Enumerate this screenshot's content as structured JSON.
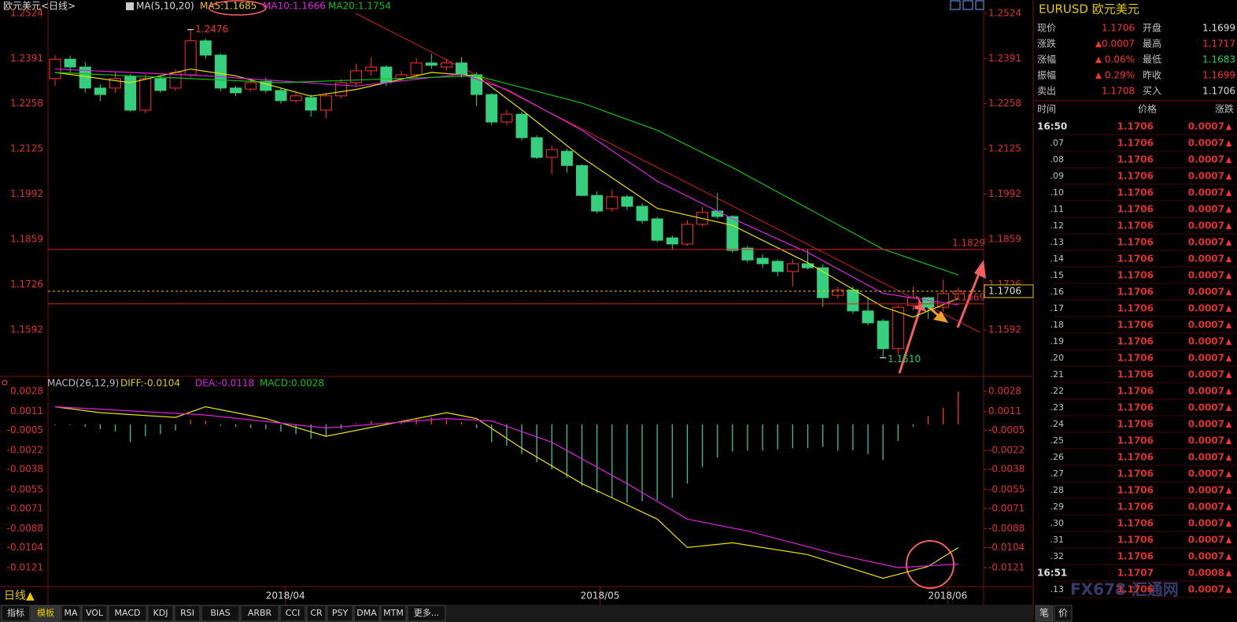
{
  "header": {
    "symbol": "欧元美元<日线>",
    "ma": "MA(5,10,20)",
    "ma5": "MA5:1.1685",
    "ma10": "MA10:1.1666",
    "ma20": "MA20:1.1754",
    "bottom_period": "日线▲"
  },
  "chart_data": [
    {
      "type": "candlestick",
      "ylim": [
        1.1474,
        1.2547
      ],
      "yticks": [
        1.2524,
        1.2391,
        1.2258,
        1.2125,
        1.1992,
        1.1859,
        1.1726,
        1.1592
      ],
      "open": [
        1.2332,
        1.2389,
        1.2366,
        1.2304,
        1.2304,
        1.2339,
        1.2239,
        1.2332,
        1.2304,
        1.2343,
        1.2443,
        1.2401,
        1.2304,
        1.2301,
        1.2324,
        1.2297,
        1.2267,
        1.2276,
        1.2239,
        1.2281,
        1.232,
        1.2355,
        1.2366,
        1.2332,
        1.2343,
        1.2378,
        1.2366,
        1.2378,
        1.2343,
        1.2285,
        1.2204,
        1.2227,
        1.2158,
        1.21,
        1.2118,
        1.2076,
        1.1988,
        1.1949,
        1.1984,
        1.1956,
        1.1919,
        1.1863,
        1.1845,
        1.1903,
        1.1942,
        1.1926,
        1.1833,
        1.1803,
        1.1794,
        1.1764,
        1.1787,
        1.1775,
        1.1694,
        1.171,
        1.1648,
        1.1618,
        1.1537,
        1.1664,
        1.1687,
        1.1659,
        1.1699
      ],
      "high": [
        1.24,
        1.24,
        1.238,
        1.2315,
        1.235,
        1.2345,
        1.2345,
        1.234,
        1.236,
        1.2476,
        1.245,
        1.2405,
        1.231,
        1.233,
        1.2335,
        1.2305,
        1.229,
        1.2285,
        1.229,
        1.233,
        1.2375,
        1.2395,
        1.2372,
        1.2355,
        1.2392,
        1.2405,
        1.239,
        1.2395,
        1.235,
        1.229,
        1.224,
        1.2235,
        1.2165,
        1.2135,
        1.2125,
        1.208,
        1.2,
        1.2005,
        1.199,
        1.1965,
        1.1925,
        1.187,
        1.1915,
        1.1955,
        1.1995,
        1.193,
        1.184,
        1.1815,
        1.18,
        1.18,
        1.183,
        1.1785,
        1.172,
        1.172,
        1.169,
        1.1625,
        1.1665,
        1.172,
        1.169,
        1.174,
        1.1717
      ],
      "low": [
        1.231,
        1.235,
        1.229,
        1.2265,
        1.229,
        1.2235,
        1.223,
        1.229,
        1.2295,
        1.2335,
        1.239,
        1.2295,
        1.228,
        1.2295,
        1.229,
        1.2258,
        1.226,
        1.222,
        1.2215,
        1.2275,
        1.231,
        1.234,
        1.231,
        1.2325,
        1.2335,
        1.236,
        1.2355,
        1.2335,
        1.225,
        1.2195,
        1.2195,
        1.215,
        1.2095,
        1.205,
        1.2055,
        1.1985,
        1.1935,
        1.194,
        1.1945,
        1.1905,
        1.185,
        1.183,
        1.184,
        1.1895,
        1.192,
        1.182,
        1.179,
        1.1775,
        1.175,
        1.172,
        1.177,
        1.166,
        1.1685,
        1.164,
        1.1605,
        1.151,
        1.152,
        1.165,
        1.1625,
        1.1645,
        1.1683
      ],
      "close": [
        1.2389,
        1.2366,
        1.2304,
        1.2285,
        1.2332,
        1.2239,
        1.2332,
        1.2297,
        1.235,
        1.2443,
        1.2401,
        1.2304,
        1.229,
        1.232,
        1.2297,
        1.2267,
        1.2281,
        1.2239,
        1.2281,
        1.232,
        1.2355,
        1.2366,
        1.232,
        1.2343,
        1.2378,
        1.2371,
        1.2378,
        1.2343,
        1.2285,
        1.2204,
        1.2227,
        1.2158,
        1.21,
        1.2123,
        1.2076,
        1.1988,
        1.1942,
        1.1984,
        1.1956,
        1.1914,
        1.1856,
        1.1845,
        1.1903,
        1.1938,
        1.1926,
        1.1826,
        1.1798,
        1.1787,
        1.1764,
        1.1787,
        1.1775,
        1.1687,
        1.171,
        1.1648,
        1.1613,
        1.1537,
        1.1659,
        1.1687,
        1.1659,
        1.1699,
        1.1706
      ],
      "up_color": "#ff3232",
      "down_color": "#36cf7e",
      "series": [
        {
          "label": "MA5",
          "color": "#e8e000",
          "x": [
            0,
            5,
            9,
            12,
            17,
            20,
            25,
            28,
            31,
            35,
            40,
            45,
            50,
            55,
            57,
            60
          ],
          "values": [
            1.235,
            1.232,
            1.236,
            1.234,
            1.228,
            1.23,
            1.235,
            1.234,
            1.224,
            1.21,
            1.195,
            1.19,
            1.179,
            1.166,
            1.163,
            1.1685
          ]
        },
        {
          "label": "MA10",
          "color": "#e020e0",
          "x": [
            0,
            10,
            20,
            27,
            30,
            35,
            40,
            45,
            50,
            55,
            60
          ],
          "values": [
            1.236,
            1.234,
            1.231,
            1.2345,
            1.23,
            1.218,
            1.203,
            1.192,
            1.182,
            1.17,
            1.1666
          ]
        },
        {
          "label": "MA20",
          "color": "#10c010",
          "x": [
            0,
            15,
            28,
            35,
            40,
            45,
            50,
            55,
            60
          ],
          "values": [
            1.235,
            1.232,
            1.234,
            1.226,
            1.218,
            1.207,
            1.195,
            1.183,
            1.1754
          ]
        }
      ],
      "levels": [
        1.1829,
        1.1669
      ],
      "current": 1.1706,
      "annotations": [
        {
          "index": 9,
          "value": 1.2476
        },
        {
          "index": 55,
          "value": 1.151,
          "label": "1.1510"
        }
      ]
    },
    {
      "type": "macd",
      "title": "MACD(26,12,9)",
      "diff_label": "DIFF:-0.0104",
      "dea_label": "DEA:-0.0118",
      "macd_label": "MACD:0.0028",
      "ylim": [
        -0.0137,
        0.0038
      ],
      "yticks": [
        0.0028,
        0.0011,
        -0.0005,
        -0.0022,
        -0.0038,
        -0.0055,
        -0.0071,
        -0.0088,
        -0.0104,
        -0.0121
      ],
      "xticks": [
        {
          "value": 15.3,
          "label": "2018/04"
        },
        {
          "value": 36.2,
          "label": "2018/05"
        },
        {
          "value": 59.3,
          "label": "2018/06"
        }
      ],
      "histogram": [
        0,
        0,
        -0.0002,
        -0.0004,
        -0.0006,
        -0.0015,
        -0.001,
        -0.0008,
        -0.0005,
        0.0004,
        0.0003,
        -0.0001,
        -0.0002,
        -0.0003,
        -0.0004,
        -0.0006,
        -0.0008,
        -0.0012,
        -0.001,
        -0.0004,
        0.0001,
        0.0003,
        0.0002,
        0.0003,
        0.0005,
        0.0006,
        0.0004,
        0.0002,
        -0.0003,
        -0.0015,
        -0.0018,
        -0.0025,
        -0.0032,
        -0.0038,
        -0.0045,
        -0.0052,
        -0.0058,
        -0.0062,
        -0.0066,
        -0.0065,
        -0.0064,
        -0.0062,
        -0.005,
        -0.0036,
        -0.0028,
        -0.0023,
        -0.0022,
        -0.0022,
        -0.0021,
        -0.002,
        -0.002,
        -0.0019,
        -0.0022,
        -0.0022,
        -0.0025,
        -0.003,
        -0.0014,
        -0.0002,
        0.0007,
        0.0014,
        0.0028
      ],
      "up_color": "#ff3232",
      "down_color": "#40c0a0",
      "series": [
        {
          "color": "#e8e000",
          "x": [
            0,
            3,
            8,
            10,
            14,
            18,
            22,
            26,
            28,
            31,
            35,
            40,
            42,
            45,
            50,
            55,
            58,
            60
          ],
          "values": [
            0.0015,
            0.001,
            0.0006,
            0.0015,
            0.0005,
            -0.001,
            0,
            0.001,
            0.0005,
            -0.002,
            -0.005,
            -0.008,
            -0.0104,
            -0.01,
            -0.011,
            -0.013,
            -0.012,
            -0.0104
          ]
        },
        {
          "color": "#e020e0",
          "x": [
            0,
            10,
            18,
            26,
            29,
            33,
            38,
            42,
            46,
            52,
            56,
            60
          ],
          "values": [
            0.0015,
            0.0008,
            -0.0003,
            0.0005,
            0.0003,
            -0.0015,
            -0.005,
            -0.008,
            -0.009,
            -0.011,
            -0.0121,
            -0.0118
          ]
        }
      ]
    }
  ],
  "quote": {
    "title": "EURUSD 欧元美元",
    "rows": [
      [
        "现价",
        "1.1706",
        "开盘",
        "1.1699"
      ],
      [
        "涨跌",
        "0.0007",
        "最高",
        "1.1717"
      ],
      [
        "涨幅",
        "0.06%",
        "最低",
        "1.1683"
      ],
      [
        "振幅",
        "0.29%",
        "昨收",
        "1.1699"
      ],
      [
        "卖出",
        "1.1708",
        "买入",
        "1.1706"
      ]
    ]
  },
  "ticks": {
    "header": [
      "时间",
      "价格",
      "涨跌"
    ],
    "rows": [
      [
        "16:50",
        "1.1706",
        "0.0007"
      ],
      [
        ".07",
        "1.1706",
        "0.0007"
      ],
      [
        ".08",
        "1.1706",
        "0.0007"
      ],
      [
        ".09",
        "1.1706",
        "0.0007"
      ],
      [
        ".10",
        "1.1706",
        "0.0007"
      ],
      [
        ".11",
        "1.1706",
        "0.0007"
      ],
      [
        ".12",
        "1.1706",
        "0.0007"
      ],
      [
        ".13",
        "1.1706",
        "0.0007"
      ],
      [
        ".14",
        "1.1706",
        "0.0007"
      ],
      [
        ".15",
        "1.1706",
        "0.0007"
      ],
      [
        ".16",
        "1.1706",
        "0.0007"
      ],
      [
        ".17",
        "1.1706",
        "0.0007"
      ],
      [
        ".18",
        "1.1706",
        "0.0007"
      ],
      [
        ".19",
        "1.1706",
        "0.0007"
      ],
      [
        ".20",
        "1.1706",
        "0.0007"
      ],
      [
        ".21",
        "1.1706",
        "0.0007"
      ],
      [
        ".22",
        "1.1706",
        "0.0007"
      ],
      [
        ".23",
        "1.1706",
        "0.0007"
      ],
      [
        ".24",
        "1.1706",
        "0.0007"
      ],
      [
        ".25",
        "1.1706",
        "0.0007"
      ],
      [
        ".26",
        "1.1706",
        "0.0007"
      ],
      [
        ".27",
        "1.1706",
        "0.0007"
      ],
      [
        ".28",
        "1.1706",
        "0.0007"
      ],
      [
        ".29",
        "1.1706",
        "0.0007"
      ],
      [
        ".30",
        "1.1706",
        "0.0007"
      ],
      [
        ".31",
        "1.1706",
        "0.0007"
      ],
      [
        ".32",
        "1.1706",
        "0.0007"
      ],
      [
        "16:51",
        "1.1707",
        "0.0008"
      ],
      [
        ".13",
        "1.1706",
        "0.0007"
      ]
    ]
  },
  "tabs": [
    "指标",
    "模板",
    "MA",
    "VOL",
    "MACD",
    "KDJ",
    "RSI",
    "BIAS",
    "ARBR",
    "CCI",
    "CR",
    "PSY",
    "DMA",
    "MTM",
    "更多..."
  ],
  "side_tabs": [
    "笔",
    "价"
  ],
  "watermark": "FX678 汇通网"
}
